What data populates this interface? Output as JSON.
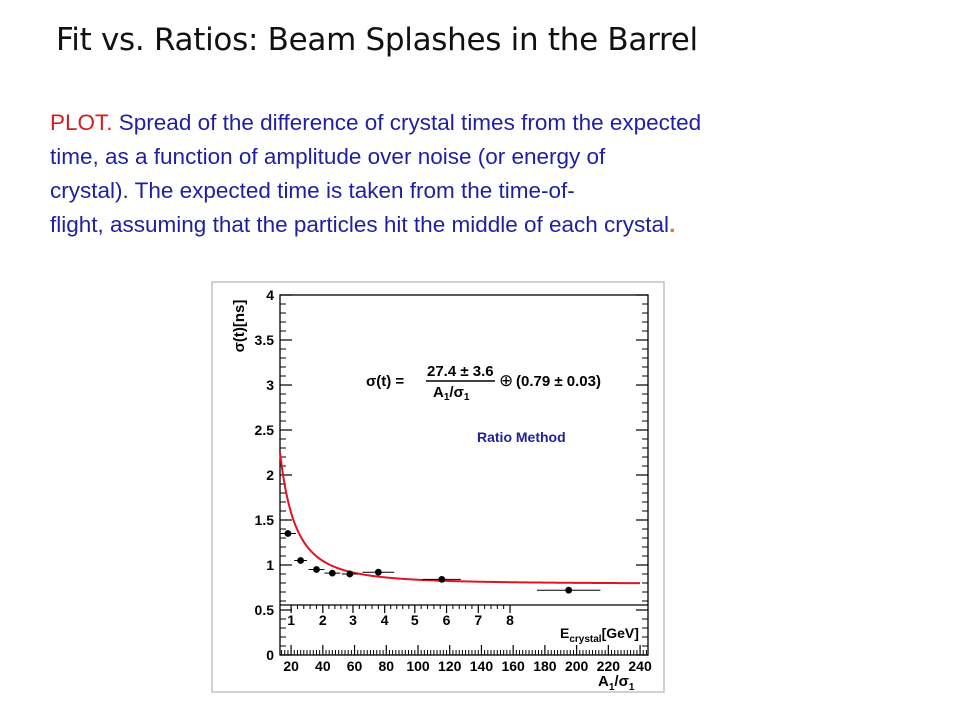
{
  "slide": {
    "title": "Fit vs. Ratios: Beam Splashes in the Barrel",
    "description": {
      "lead": "PLOT.",
      "lines": [
        " Spread of the difference of crystal times from the expected",
        "time, as a function of amplitude over noise (or energy of",
        "crystal).  The expected time is taken from the time-of-",
        "flight, assuming that the particles hit the middle of each crystal"
      ],
      "trailing": "."
    }
  },
  "chart_data": {
    "type": "scatter",
    "title": "",
    "ylabel": "σ(t)[ns]",
    "ylim": [
      0,
      4
    ],
    "yticks": [
      "0",
      "0.5",
      "1",
      "1.5",
      "2",
      "2.5",
      "3",
      "3.5",
      "4"
    ],
    "x_bottom": {
      "label_main": "A",
      "label_sub1": "1",
      "label_slash": "/σ",
      "label_sub2": "1",
      "xlim": [
        13,
        245
      ],
      "ticks": [
        "20",
        "40",
        "60",
        "80",
        "100",
        "120",
        "140",
        "160",
        "180",
        "200",
        "220",
        "240"
      ]
    },
    "x_top": {
      "label_main": "E",
      "label_sub": "crystal",
      "label_unit": "[GeV]",
      "ticks": [
        "1",
        "2",
        "3",
        "4",
        "5",
        "6",
        "7",
        "8"
      ],
      "ticks_aoverN": [
        20,
        40,
        59,
        79,
        98,
        118,
        138,
        158
      ]
    },
    "annotation": {
      "lhs": "σ(t) =",
      "numerator": "27.4 ± 3.6",
      "den_main": "A",
      "den_sub1": "1",
      "den_slash": "/σ",
      "den_sub2": "1",
      "oplus": "⊕",
      "rhs": "(0.79 ± 0.03)"
    },
    "label": "Ratio Method",
    "fit": {
      "a": 27.4,
      "a_err": 3.6,
      "b": 0.79,
      "b_err": 0.03,
      "x_range": [
        13,
        240
      ]
    },
    "points": [
      {
        "x": 18,
        "y": 1.35,
        "xerr": 5,
        "yerr": 0.03
      },
      {
        "x": 26,
        "y": 1.05,
        "xerr": 4,
        "yerr": 0.03
      },
      {
        "x": 36,
        "y": 0.95,
        "xerr": 5,
        "yerr": 0.03
      },
      {
        "x": 46,
        "y": 0.91,
        "xerr": 5,
        "yerr": 0.03
      },
      {
        "x": 57,
        "y": 0.9,
        "xerr": 5,
        "yerr": 0.04
      },
      {
        "x": 75,
        "y": 0.92,
        "xerr": 10,
        "yerr": 0.03
      },
      {
        "x": 115,
        "y": 0.84,
        "xerr": 12,
        "yerr": 0.03
      },
      {
        "x": 195,
        "y": 0.72,
        "xerr": 20,
        "yerr": 0.03
      }
    ],
    "colors": {
      "fit": "#e0141e",
      "points": "#000000",
      "label": "#2020a0"
    }
  }
}
